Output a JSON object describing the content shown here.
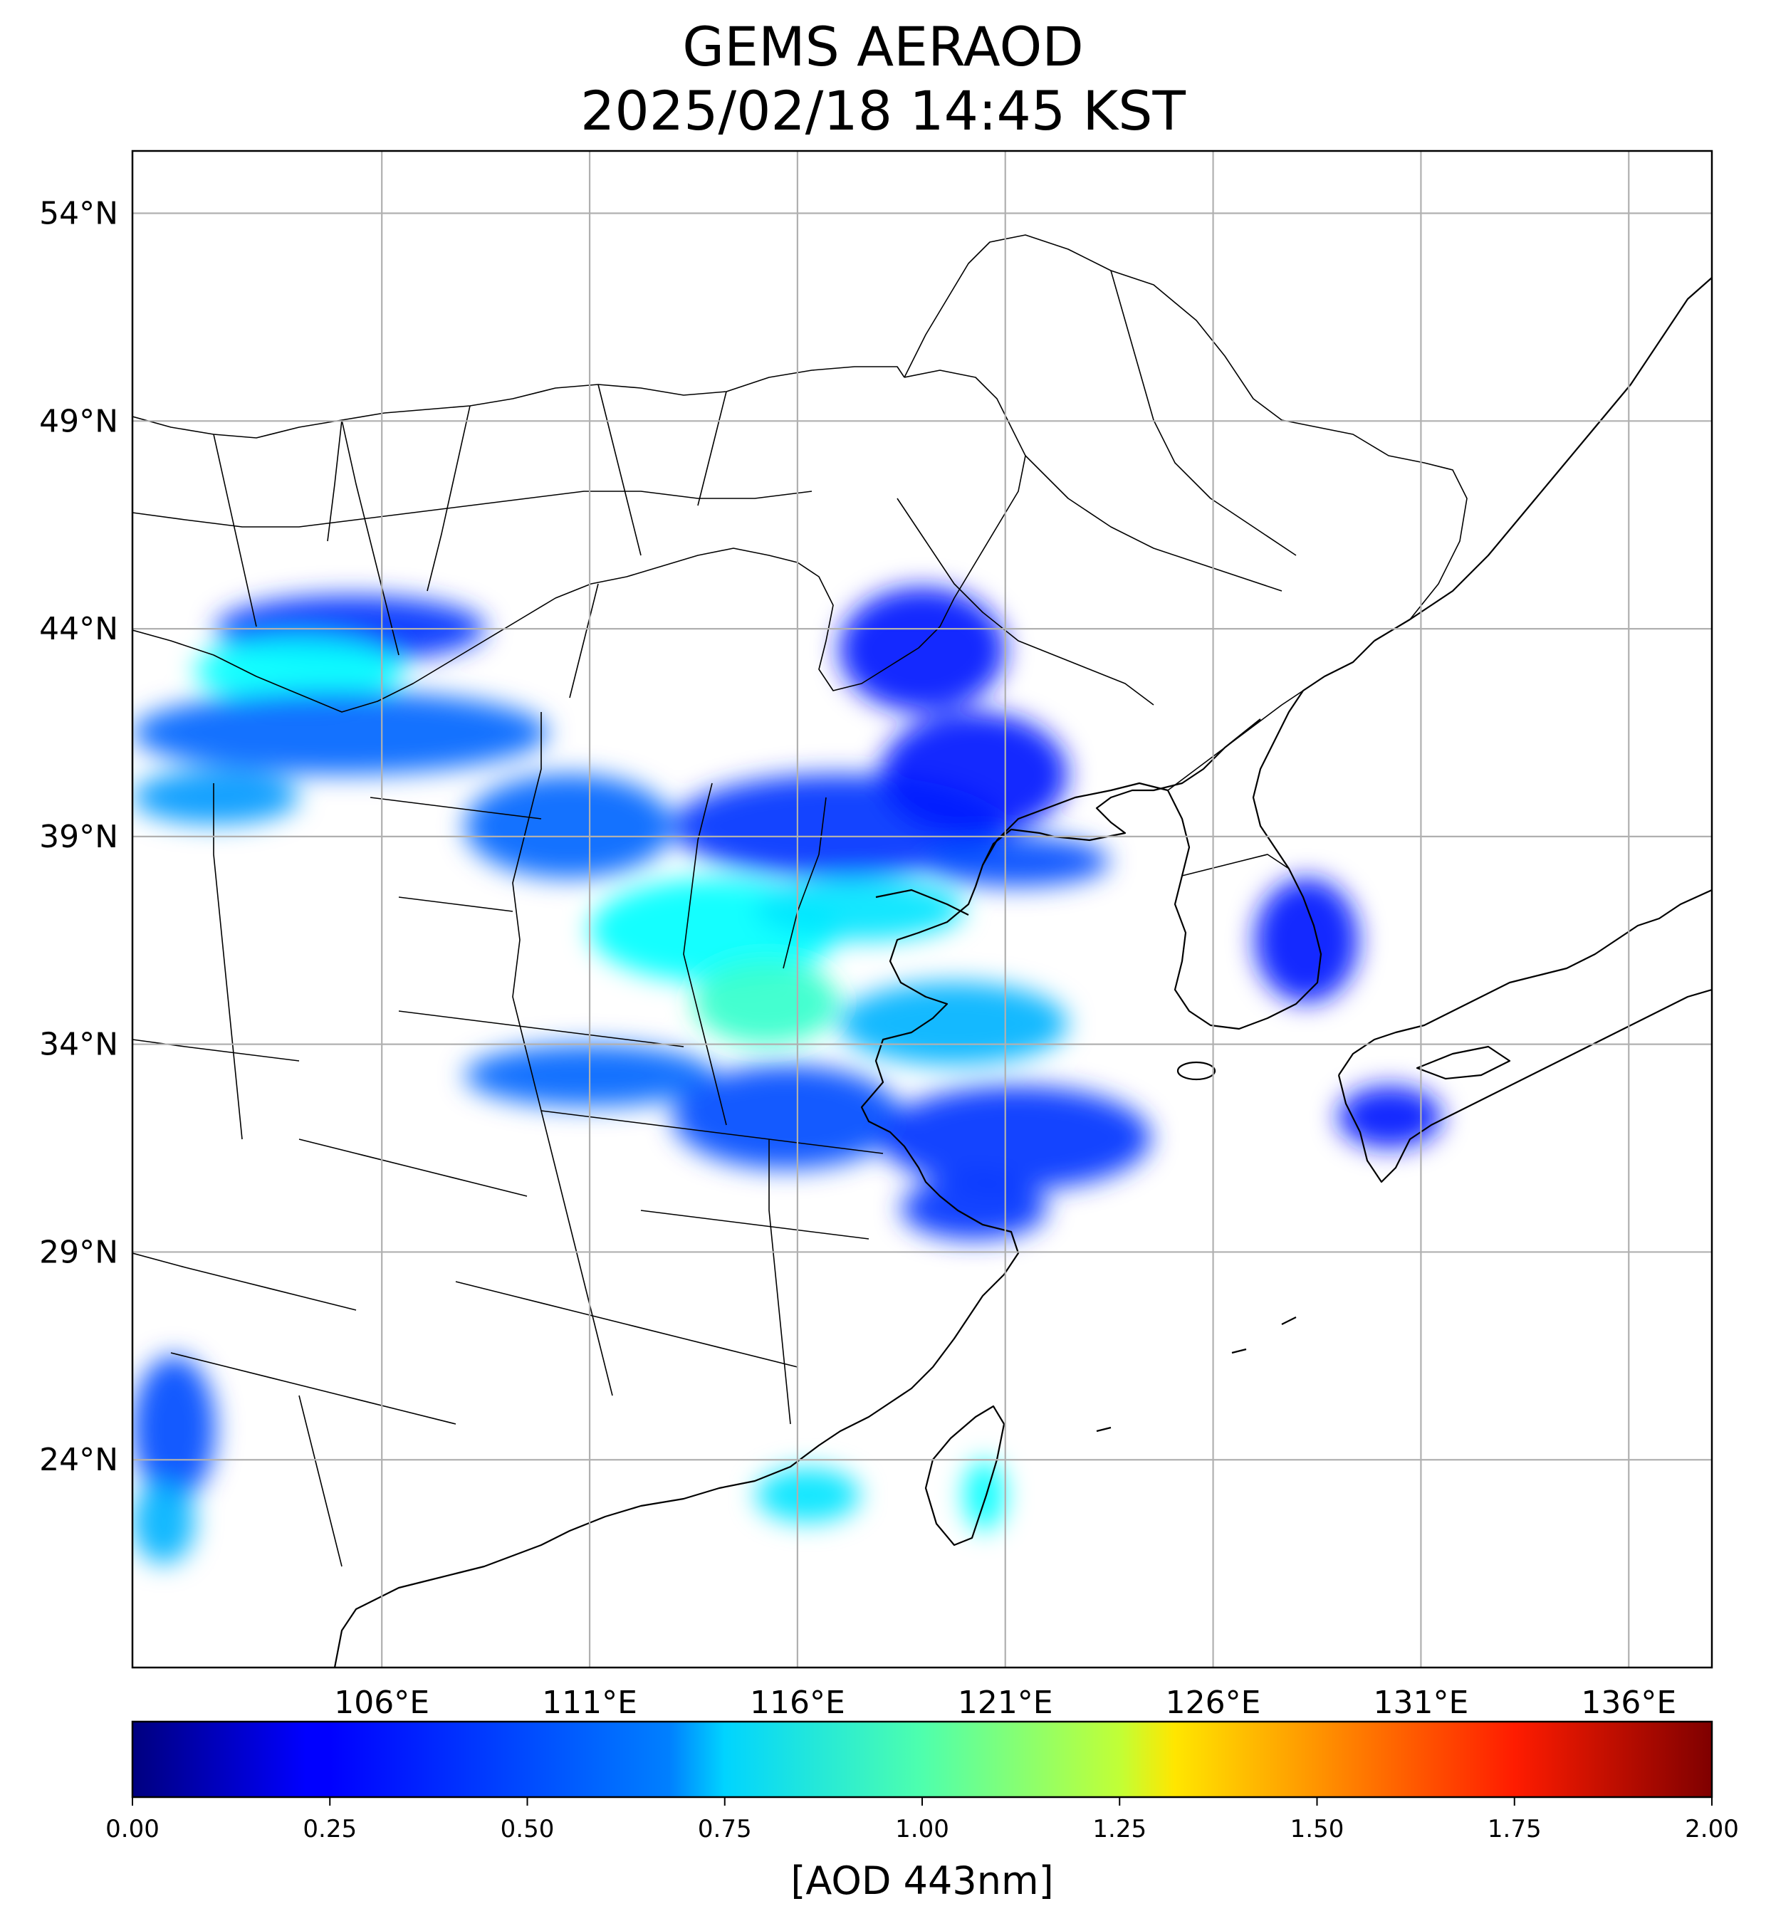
{
  "title": {
    "line1": "GEMS AERAOD",
    "line2": "2025/02/18 14:45 KST"
  },
  "map": {
    "lon_range": [
      100.0,
      138.0
    ],
    "lat_range": [
      19.0,
      55.5
    ],
    "lat_ticks": [
      {
        "value": 54,
        "label": "54°N"
      },
      {
        "value": 49,
        "label": "49°N"
      },
      {
        "value": 44,
        "label": "44°N"
      },
      {
        "value": 39,
        "label": "39°N"
      },
      {
        "value": 34,
        "label": "34°N"
      },
      {
        "value": 29,
        "label": "29°N"
      },
      {
        "value": 24,
        "label": "24°N"
      }
    ],
    "lon_ticks": [
      {
        "value": 106,
        "label": "106°E"
      },
      {
        "value": 111,
        "label": "111°E"
      },
      {
        "value": 116,
        "label": "116°E"
      },
      {
        "value": 121,
        "label": "121°E"
      },
      {
        "value": 126,
        "label": "126°E"
      },
      {
        "value": 131,
        "label": "131°E"
      },
      {
        "value": 136,
        "label": "136°E"
      }
    ],
    "grid": true,
    "colors": {
      "grid": "#b0b0b0",
      "coastline": "#000000",
      "frame": "#000000"
    },
    "aod_regions": [
      {
        "lon": [
          102.0,
          108.5
        ],
        "lat": [
          43.2,
          44.8
        ],
        "aod": 0.35
      },
      {
        "lon": [
          101.5,
          106.5
        ],
        "lat": [
          42.2,
          43.8
        ],
        "aod": 0.75
      },
      {
        "lon": [
          100.0,
          110.0
        ],
        "lat": [
          40.5,
          42.5
        ],
        "aod": 0.45
      },
      {
        "lon": [
          100.0,
          104.0
        ],
        "lat": [
          39.3,
          40.6
        ],
        "aod": 0.55
      },
      {
        "lon": [
          108.0,
          113.0
        ],
        "lat": [
          38.0,
          40.5
        ],
        "aod": 0.45
      },
      {
        "lon": [
          113.0,
          121.0
        ],
        "lat": [
          38.0,
          40.5
        ],
        "aod": 0.35
      },
      {
        "lon": [
          119.0,
          123.5
        ],
        "lat": [
          37.8,
          39.0
        ],
        "aod": 0.4
      },
      {
        "lon": [
          111.0,
          117.0
        ],
        "lat": [
          35.5,
          38.0
        ],
        "aod": 0.75
      },
      {
        "lon": [
          115.0,
          120.0
        ],
        "lat": [
          36.5,
          38.0
        ],
        "aod": 0.7
      },
      {
        "lon": [
          113.5,
          117.0
        ],
        "lat": [
          34.0,
          36.0
        ],
        "aod": 0.85
      },
      {
        "lon": [
          117.0,
          122.5
        ],
        "lat": [
          33.5,
          35.5
        ],
        "aod": 0.6
      },
      {
        "lon": [
          108.0,
          114.0
        ],
        "lat": [
          32.5,
          34.0
        ],
        "aod": 0.45
      },
      {
        "lon": [
          113.0,
          118.5
        ],
        "lat": [
          31.0,
          33.5
        ],
        "aod": 0.4
      },
      {
        "lon": [
          118.0,
          124.5
        ],
        "lat": [
          30.5,
          33.0
        ],
        "aod": 0.35
      },
      {
        "lon": [
          118.5,
          122.0
        ],
        "lat": [
          29.3,
          30.8
        ],
        "aod": 0.35
      },
      {
        "lon": [
          118.0,
          122.5
        ],
        "lat": [
          39.0,
          42.0
        ],
        "aod": 0.3
      },
      {
        "lon": [
          117.0,
          121.0
        ],
        "lat": [
          42.0,
          45.0
        ],
        "aod": 0.3
      },
      {
        "lon": [
          127.0,
          129.5
        ],
        "lat": [
          35.0,
          38.0
        ],
        "aod": 0.3
      },
      {
        "lon": [
          129.0,
          131.5
        ],
        "lat": [
          31.5,
          33.0
        ],
        "aod": 0.3
      },
      {
        "lon": [
          100.0,
          102.0
        ],
        "lat": [
          23.0,
          26.5
        ],
        "aod": 0.4
      },
      {
        "lon": [
          100.0,
          101.5
        ],
        "lat": [
          21.5,
          23.5
        ],
        "aod": 0.6
      },
      {
        "lon": [
          115.0,
          117.5
        ],
        "lat": [
          22.5,
          23.8
        ],
        "aod": 0.7
      },
      {
        "lon": [
          120.0,
          121.0
        ],
        "lat": [
          22.3,
          24.0
        ],
        "aod": 0.75
      }
    ]
  },
  "colorbar": {
    "min": 0.0,
    "max": 2.0,
    "colormap": "jet",
    "ticks": [
      "0.00",
      "0.25",
      "0.50",
      "0.75",
      "1.00",
      "1.25",
      "1.50",
      "1.75",
      "2.00"
    ],
    "label": "[AOD 443nm]"
  }
}
